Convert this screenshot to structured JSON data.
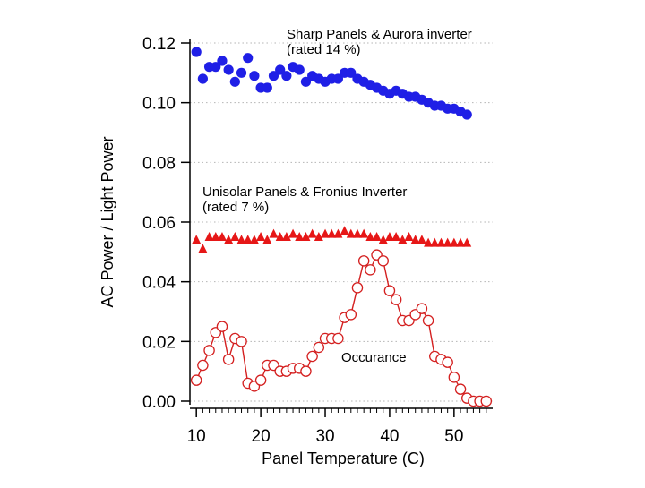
{
  "chart_data": {
    "type": "scatter",
    "xlabel": "Panel Temperature (C)",
    "ylabel": "AC Power  /  Light Power",
    "xlim": [
      9,
      56
    ],
    "ylim": [
      0.0,
      0.12
    ],
    "x_ticks": [
      10,
      20,
      30,
      40,
      50
    ],
    "y_ticks": [
      0.0,
      0.02,
      0.04,
      0.06,
      0.08,
      0.1,
      0.12
    ],
    "x_tick_labels": [
      "10",
      "20",
      "30",
      "40",
      "50"
    ],
    "y_tick_labels": [
      "0.00",
      "0.02",
      "0.04",
      "0.06",
      "0.08",
      "0.10",
      "0.12"
    ],
    "grid": true,
    "series": [
      {
        "name": "Sharp Panels & Aurora inverter",
        "note": "(rated 14 %)",
        "marker": "circle-filled",
        "color": "#1f1fe6",
        "x": [
          10,
          11,
          12,
          13,
          14,
          15,
          16,
          17,
          18,
          19,
          20,
          21,
          22,
          23,
          24,
          25,
          26,
          27,
          28,
          29,
          30,
          31,
          32,
          33,
          34,
          35,
          36,
          37,
          38,
          39,
          40,
          41,
          42,
          43,
          44,
          45,
          46,
          47,
          48,
          49,
          50,
          51,
          52
        ],
        "y": [
          0.117,
          0.108,
          0.112,
          0.112,
          0.114,
          0.111,
          0.107,
          0.11,
          0.115,
          0.109,
          0.105,
          0.105,
          0.109,
          0.111,
          0.109,
          0.112,
          0.111,
          0.107,
          0.109,
          0.108,
          0.107,
          0.108,
          0.108,
          0.11,
          0.11,
          0.108,
          0.107,
          0.106,
          0.105,
          0.104,
          0.103,
          0.104,
          0.103,
          0.102,
          0.102,
          0.101,
          0.1,
          0.099,
          0.099,
          0.098,
          0.098,
          0.097,
          0.096
        ]
      },
      {
        "name": "Unisolar Panels  & Fronius Inverter",
        "note": "(rated 7 %)",
        "marker": "triangle-filled",
        "color": "#e61717",
        "x": [
          10,
          11,
          12,
          13,
          14,
          15,
          16,
          17,
          18,
          19,
          20,
          21,
          22,
          23,
          24,
          25,
          26,
          27,
          28,
          29,
          30,
          31,
          32,
          33,
          34,
          35,
          36,
          37,
          38,
          39,
          40,
          41,
          42,
          43,
          44,
          45,
          46,
          47,
          48,
          49,
          50,
          51,
          52
        ],
        "y": [
          0.054,
          0.051,
          0.055,
          0.055,
          0.055,
          0.054,
          0.055,
          0.054,
          0.054,
          0.054,
          0.055,
          0.054,
          0.056,
          0.055,
          0.055,
          0.056,
          0.055,
          0.055,
          0.056,
          0.055,
          0.056,
          0.056,
          0.056,
          0.057,
          0.056,
          0.056,
          0.056,
          0.055,
          0.055,
          0.054,
          0.055,
          0.055,
          0.054,
          0.055,
          0.054,
          0.054,
          0.053,
          0.053,
          0.053,
          0.053,
          0.053,
          0.053,
          0.053
        ]
      },
      {
        "name": "Occurance",
        "marker": "circle-open-line",
        "color": "#d42020",
        "x": [
          10,
          11,
          12,
          13,
          14,
          15,
          16,
          17,
          18,
          19,
          20,
          21,
          22,
          23,
          24,
          25,
          26,
          27,
          28,
          29,
          30,
          31,
          32,
          33,
          34,
          35,
          36,
          37,
          38,
          39,
          40,
          41,
          42,
          43,
          44,
          45,
          46,
          47,
          48,
          49,
          50,
          51,
          52,
          53,
          54,
          55
        ],
        "y": [
          0.007,
          0.012,
          0.017,
          0.023,
          0.025,
          0.014,
          0.021,
          0.02,
          0.006,
          0.005,
          0.007,
          0.012,
          0.012,
          0.01,
          0.01,
          0.011,
          0.011,
          0.01,
          0.015,
          0.018,
          0.021,
          0.021,
          0.021,
          0.028,
          0.029,
          0.038,
          0.047,
          0.044,
          0.049,
          0.047,
          0.037,
          0.034,
          0.027,
          0.027,
          0.029,
          0.031,
          0.027,
          0.015,
          0.014,
          0.013,
          0.008,
          0.004,
          0.001,
          0.0,
          0.0,
          0.0
        ]
      }
    ]
  }
}
